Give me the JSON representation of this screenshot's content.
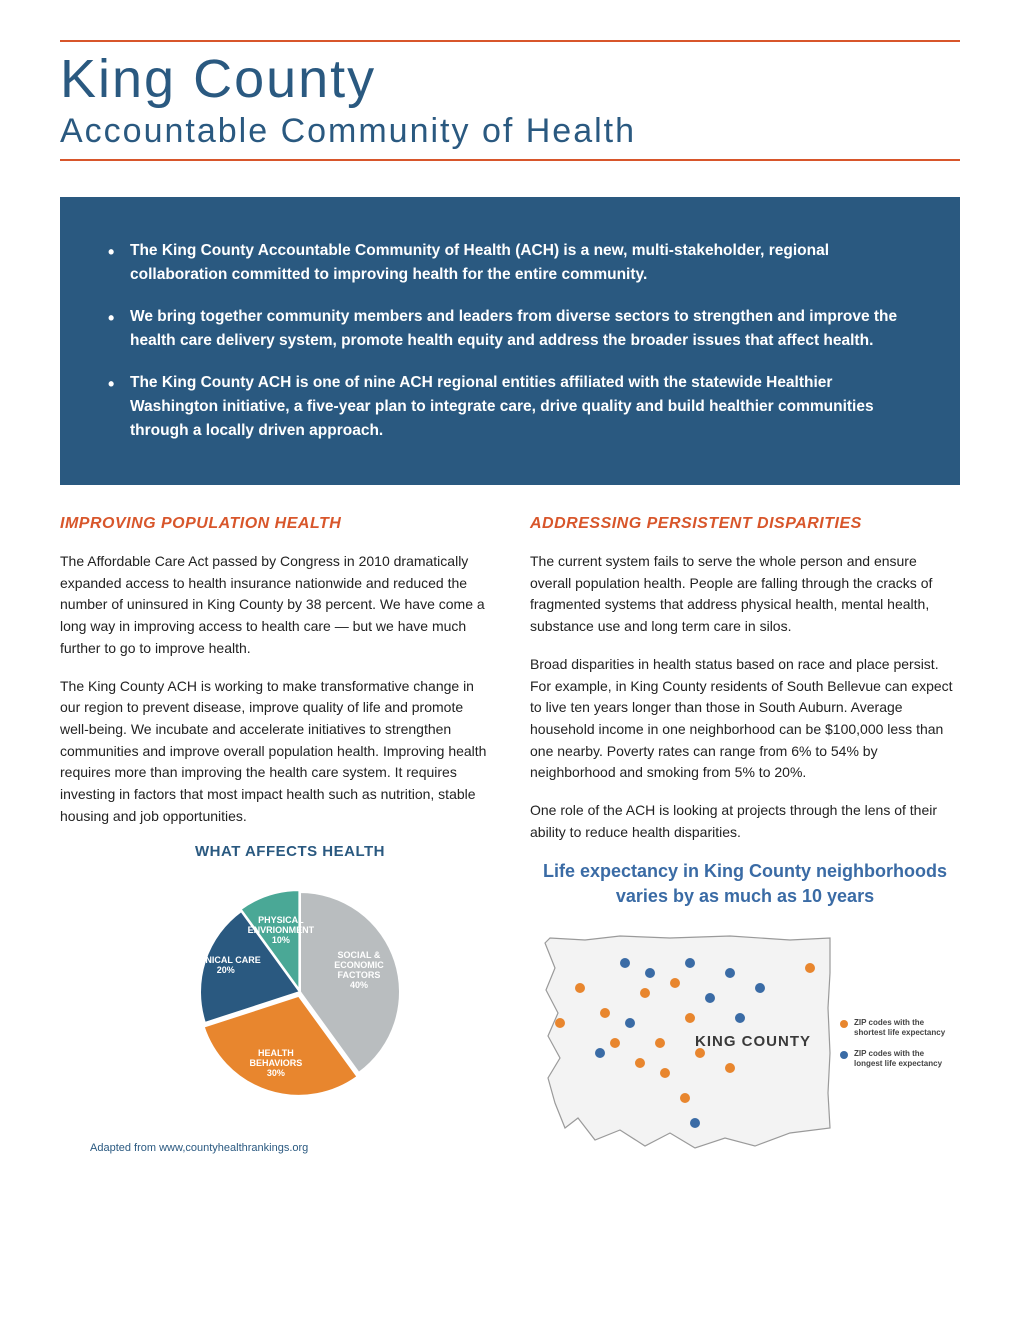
{
  "header": {
    "title": "King County",
    "subtitle": "Accountable Community of Health",
    "rule_color": "#d8562b",
    "title_color": "#2a5980"
  },
  "intro_box": {
    "background": "#2a5980",
    "text_color": "#ffffff",
    "bullets": [
      "The King County Accountable Community of Health (ACH) is a new, multi-stakeholder, regional collaboration committed to improving health for the entire community.",
      "We bring together community members and leaders from diverse sectors to strengthen and improve the health care delivery system, promote health equity and address the broader issues that affect health.",
      "The King County ACH is one of nine ACH regional entities affiliated with the statewide Healthier Washington initiative, a five-year plan to integrate care, drive quality and build healthier communities through a locally driven approach."
    ]
  },
  "left_column": {
    "heading": "IMPROVING POPULATION HEALTH",
    "heading_color": "#d8562b",
    "paragraphs": [
      "The Affordable Care Act passed by Congress in 2010 dramatically expanded access to health insurance nationwide and reduced the number of uninsured in King County by 38 percent. We have come a long way in improving access to health care — but we have much further to go to improve health.",
      "The King County ACH is working to make transformative change in our region to prevent disease, improve quality of life and promote well-being. We incubate and accelerate initiatives to strengthen communities and improve overall population health. Improving health requires more than improving the health care system. It requires investing in factors that most impact health such as nutrition, stable housing and job opportunities."
    ],
    "chart": {
      "type": "pie",
      "title": "WHAT AFFECTS HEALTH",
      "title_color": "#2a5980",
      "slices": [
        {
          "label": "SOCIAL & ECONOMIC FACTORS",
          "pct": 40,
          "color": "#b9bdbf",
          "label_lines": [
            "SOCIAL &",
            "ECONOMIC",
            "FACTORS",
            "40%"
          ]
        },
        {
          "label": "HEALTH BEHAVIORS",
          "pct": 30,
          "color": "#e8862e",
          "label_lines": [
            "HEALTH",
            "BEHAVIORS",
            "30%"
          ]
        },
        {
          "label": "CLINICAL CARE",
          "pct": 20,
          "color": "#2a5980",
          "label_lines": [
            "CLINICAL CARE",
            "20%"
          ]
        },
        {
          "label": "PHYSICAL ENVIRONMENT",
          "pct": 10,
          "color": "#4aa896",
          "label_lines": [
            "PHYSICAL",
            "ENVRIONMENT",
            "10%"
          ]
        }
      ],
      "attribution": "Adapted from www,countyhealthrankings.org"
    }
  },
  "right_column": {
    "heading": "ADDRESSING PERSISTENT DISPARITIES",
    "heading_color": "#d8562b",
    "paragraphs": [
      "The current system fails to serve the whole person and ensure overall population health. People are falling through the cracks of fragmented systems that address physical health, mental health, substance use and long term care in silos.",
      "Broad disparities in health status based on race and place persist. For example, in King County residents of South Bellevue can expect to live ten years longer than those in South Auburn. Average household income in one neighborhood can be $100,000 less than one nearby. Poverty rates can range from 6% to 54% by neighborhood and smoking from 5% to 20%.",
      "One role of the ACH is looking at projects through the lens of their ability to reduce health disparities."
    ],
    "map": {
      "title": "Life expectancy in King County neighborhoods varies by as much as 10 years",
      "title_color": "#3a6ba5",
      "region_label": "KING COUNTY",
      "outline_color": "#9a9a9a",
      "fill_color": "#f3f3f3",
      "dots": {
        "orange": {
          "color": "#e8862e",
          "legend": "ZIP codes with the shortest life expectancy",
          "points": [
            [
              50,
              70
            ],
            [
              30,
              105
            ],
            [
              75,
              95
            ],
            [
              115,
              75
            ],
            [
              145,
              65
            ],
            [
              160,
              100
            ],
            [
              130,
              125
            ],
            [
              110,
              145
            ],
            [
              135,
              155
            ],
            [
              170,
              135
            ],
            [
              200,
              150
            ],
            [
              155,
              180
            ],
            [
              280,
              50
            ],
            [
              85,
              125
            ]
          ]
        },
        "blue": {
          "color": "#3a6ba5",
          "legend": "ZIP codes with the longest life expectancy",
          "points": [
            [
              95,
              45
            ],
            [
              120,
              55
            ],
            [
              160,
              45
            ],
            [
              200,
              55
            ],
            [
              180,
              80
            ],
            [
              210,
              100
            ],
            [
              100,
              105
            ],
            [
              70,
              135
            ],
            [
              165,
              205
            ],
            [
              230,
              70
            ]
          ]
        }
      }
    }
  }
}
